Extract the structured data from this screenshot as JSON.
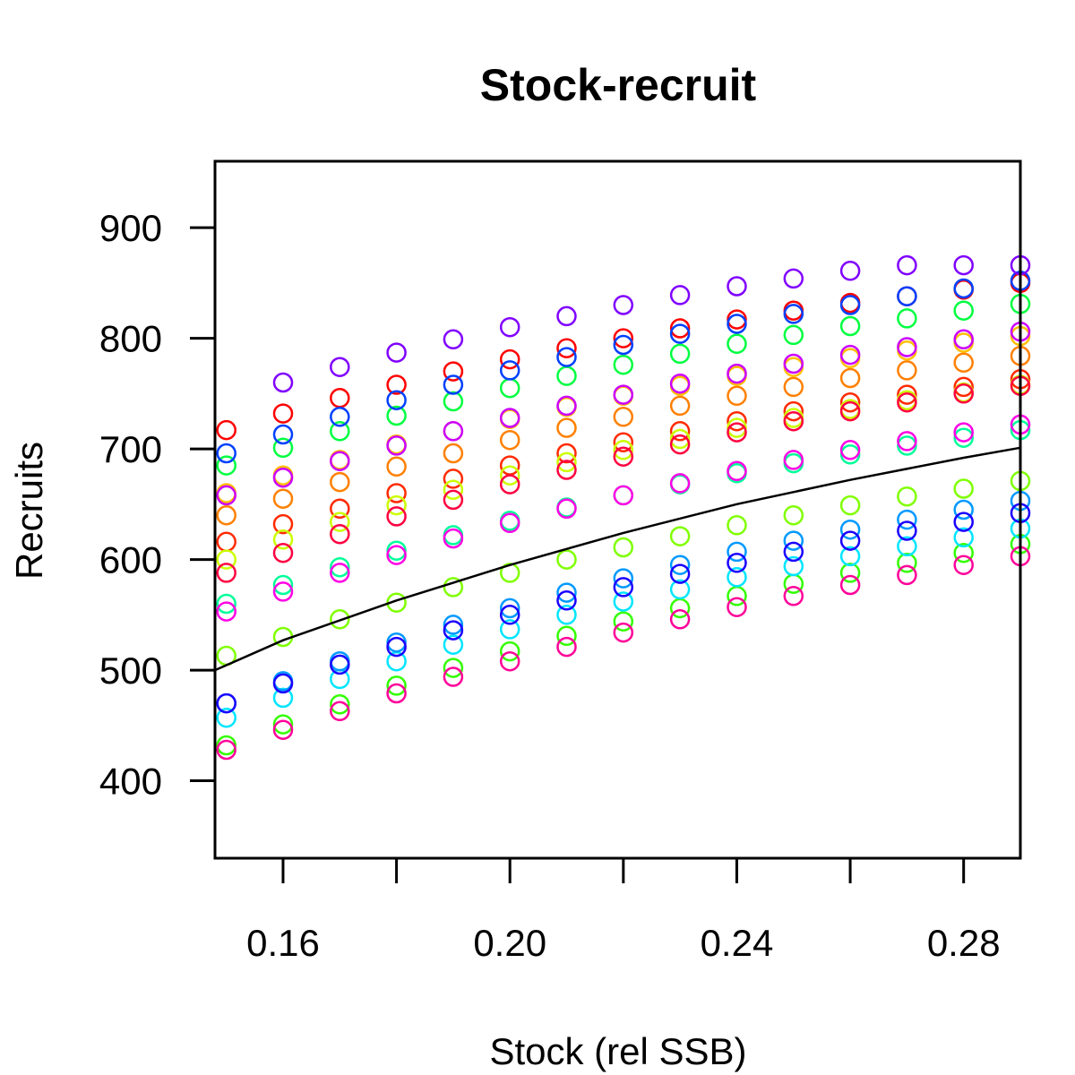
{
  "chart_data": {
    "type": "scatter",
    "title": "Stock-recruit",
    "xlabel": "Stock (rel SSB)",
    "ylabel": "Recruits",
    "xlim": [
      0.148,
      0.29
    ],
    "ylim": [
      330,
      960
    ],
    "xticks": [
      0.16,
      0.18,
      0.2,
      0.22,
      0.24,
      0.26,
      0.28
    ],
    "xtick_labels": [
      "0.16",
      "",
      "0.20",
      "",
      "0.24",
      "",
      "0.28"
    ],
    "yticks": [
      400,
      500,
      600,
      700,
      800,
      900
    ],
    "ytick_labels": [
      "400",
      "500",
      "600",
      "700",
      "800",
      "900"
    ],
    "grid": false,
    "legend": "none",
    "fitted_curve": {
      "color": "#000000",
      "x": [
        0.148,
        0.16,
        0.18,
        0.2,
        0.22,
        0.24,
        0.26,
        0.28,
        0.29
      ],
      "y": [
        500,
        527,
        563,
        595,
        624,
        650,
        672,
        692,
        701
      ]
    },
    "series": [
      {
        "color": "#ff0000",
        "x": [
          0.15,
          0.16,
          0.17,
          0.18,
          0.19,
          0.2,
          0.21,
          0.22,
          0.23,
          0.24,
          0.25,
          0.26,
          0.27,
          0.28,
          0.29
        ],
        "y": [
          717,
          732,
          746,
          758,
          770,
          781,
          791,
          800,
          809,
          817,
          825,
          832,
          838,
          844,
          850
        ]
      },
      {
        "color": "#ff2a00",
        "x": [
          0.15,
          0.16,
          0.17,
          0.18,
          0.19,
          0.2,
          0.21,
          0.22,
          0.23,
          0.24,
          0.25,
          0.26,
          0.27,
          0.28,
          0.29
        ],
        "y": [
          616,
          632,
          646,
          660,
          673,
          685,
          696,
          706,
          716,
          725,
          734,
          742,
          749,
          756,
          763
        ]
      },
      {
        "color": "#ff8000",
        "x": [
          0.15,
          0.16,
          0.17,
          0.18,
          0.19,
          0.2,
          0.21,
          0.22,
          0.23,
          0.24,
          0.25,
          0.26,
          0.27,
          0.28,
          0.29
        ],
        "y": [
          640,
          655,
          670,
          684,
          696,
          708,
          719,
          729,
          739,
          748,
          756,
          764,
          771,
          778,
          784
        ]
      },
      {
        "color": "#ffbf00",
        "x": [
          0.15,
          0.16,
          0.17,
          0.18,
          0.19,
          0.2,
          0.21,
          0.22,
          0.23,
          0.24,
          0.25,
          0.26,
          0.27,
          0.28,
          0.29
        ],
        "y": [
          660,
          676,
          690,
          704,
          716,
          727,
          738,
          748,
          757,
          766,
          774,
          782,
          789,
          796,
          802
        ]
      },
      {
        "color": "#ccff00",
        "x": [
          0.15,
          0.16,
          0.17,
          0.18,
          0.19,
          0.2,
          0.21,
          0.22,
          0.23,
          0.24,
          0.25,
          0.26,
          0.27,
          0.28,
          0.29
        ],
        "y": [
          600,
          618,
          634,
          649,
          663,
          676,
          688,
          699,
          709,
          719,
          728,
          736,
          744,
          751,
          758
        ]
      },
      {
        "color": "#80ff00",
        "x": [
          0.15,
          0.16,
          0.17,
          0.18,
          0.19,
          0.2,
          0.21,
          0.22,
          0.23,
          0.24,
          0.25,
          0.26,
          0.27,
          0.28,
          0.29
        ],
        "y": [
          513,
          530,
          546,
          561,
          575,
          588,
          600,
          611,
          621,
          631,
          640,
          649,
          657,
          664,
          671
        ]
      },
      {
        "color": "#33ff00",
        "x": [
          0.15,
          0.16,
          0.17,
          0.18,
          0.19,
          0.2,
          0.21,
          0.22,
          0.23,
          0.24,
          0.25,
          0.26,
          0.27,
          0.28,
          0.29
        ],
        "y": [
          432,
          451,
          469,
          486,
          502,
          517,
          531,
          544,
          556,
          567,
          578,
          588,
          597,
          606,
          614
        ]
      },
      {
        "color": "#00ff40",
        "x": [
          0.15,
          0.16,
          0.17,
          0.18,
          0.19,
          0.2,
          0.21,
          0.22,
          0.23,
          0.24,
          0.25,
          0.26,
          0.27,
          0.28,
          0.29
        ],
        "y": [
          685,
          701,
          716,
          730,
          743,
          755,
          766,
          776,
          786,
          795,
          803,
          811,
          818,
          825,
          831
        ]
      },
      {
        "color": "#00ff99",
        "x": [
          0.15,
          0.16,
          0.17,
          0.18,
          0.19,
          0.2,
          0.21,
          0.22,
          0.23,
          0.24,
          0.25,
          0.26,
          0.27,
          0.28,
          0.29
        ],
        "y": [
          560,
          577,
          593,
          608,
          622,
          635,
          647,
          658,
          668,
          678,
          687,
          695,
          703,
          710,
          717
        ]
      },
      {
        "color": "#00e5ff",
        "x": [
          0.15,
          0.16,
          0.17,
          0.18,
          0.19,
          0.2,
          0.21,
          0.22,
          0.23,
          0.24,
          0.25,
          0.26,
          0.27,
          0.28,
          0.29
        ],
        "y": [
          457,
          475,
          492,
          508,
          523,
          537,
          550,
          562,
          573,
          584,
          594,
          603,
          612,
          620,
          628
        ]
      },
      {
        "color": "#0099ff",
        "x": [
          0.15,
          0.16,
          0.17,
          0.18,
          0.19,
          0.2,
          0.21,
          0.22,
          0.23,
          0.24,
          0.25,
          0.26,
          0.27,
          0.28,
          0.29
        ],
        "y": [
          470,
          490,
          508,
          525,
          541,
          556,
          570,
          583,
          595,
          607,
          617,
          627,
          636,
          645,
          653
        ]
      },
      {
        "color": "#0040ff",
        "x": [
          0.15,
          0.16,
          0.17,
          0.18,
          0.19,
          0.2,
          0.21,
          0.22,
          0.23,
          0.24,
          0.25,
          0.26,
          0.27,
          0.28,
          0.29
        ],
        "y": [
          696,
          713,
          729,
          744,
          758,
          771,
          783,
          794,
          804,
          813,
          822,
          830,
          838,
          845,
          852
        ]
      },
      {
        "color": "#1a00ff",
        "x": [
          0.15,
          0.16,
          0.17,
          0.18,
          0.19,
          0.2,
          0.21,
          0.22,
          0.23,
          0.24,
          0.25,
          0.26,
          0.27,
          0.28,
          0.29
        ],
        "y": [
          470,
          488,
          505,
          521,
          536,
          550,
          563,
          575,
          587,
          597,
          607,
          617,
          626,
          634,
          642
        ]
      },
      {
        "color": "#8000ff",
        "x": [
          0.16,
          0.17,
          0.18,
          0.19,
          0.2,
          0.21,
          0.22,
          0.23,
          0.24,
          0.25,
          0.26,
          0.27,
          0.28,
          0.29
        ],
        "y": [
          760,
          774,
          787,
          799,
          810,
          820,
          830,
          839,
          847,
          854,
          861,
          866,
          866,
          866
        ]
      },
      {
        "color": "#cc00ff",
        "x": [
          0.15,
          0.16,
          0.17,
          0.18,
          0.19,
          0.2,
          0.21,
          0.22,
          0.23,
          0.24,
          0.25,
          0.26,
          0.27,
          0.28,
          0.29
        ],
        "y": [
          658,
          674,
          689,
          703,
          716,
          728,
          739,
          749,
          759,
          768,
          777,
          785,
          792,
          799,
          806
        ]
      },
      {
        "color": "#ff00e5",
        "x": [
          0.15,
          0.16,
          0.17,
          0.18,
          0.19,
          0.2,
          0.21,
          0.22,
          0.23,
          0.24,
          0.25,
          0.26,
          0.27,
          0.28,
          0.29
        ],
        "y": [
          553,
          571,
          588,
          604,
          619,
          633,
          646,
          658,
          669,
          680,
          690,
          699,
          707,
          715,
          722
        ]
      },
      {
        "color": "#ff0099",
        "x": [
          0.15,
          0.16,
          0.17,
          0.18,
          0.19,
          0.2,
          0.21,
          0.22,
          0.23,
          0.24,
          0.25,
          0.26,
          0.27,
          0.28,
          0.29
        ],
        "y": [
          428,
          446,
          463,
          479,
          494,
          508,
          521,
          534,
          546,
          557,
          567,
          577,
          586,
          595,
          603
        ]
      },
      {
        "color": "#ff0040",
        "x": [
          0.15,
          0.16,
          0.17,
          0.18,
          0.19,
          0.2,
          0.21,
          0.22,
          0.23,
          0.24,
          0.25,
          0.26,
          0.27,
          0.28,
          0.29
        ],
        "y": [
          588,
          606,
          623,
          639,
          654,
          668,
          681,
          693,
          704,
          715,
          725,
          734,
          742,
          750,
          757
        ]
      }
    ]
  }
}
